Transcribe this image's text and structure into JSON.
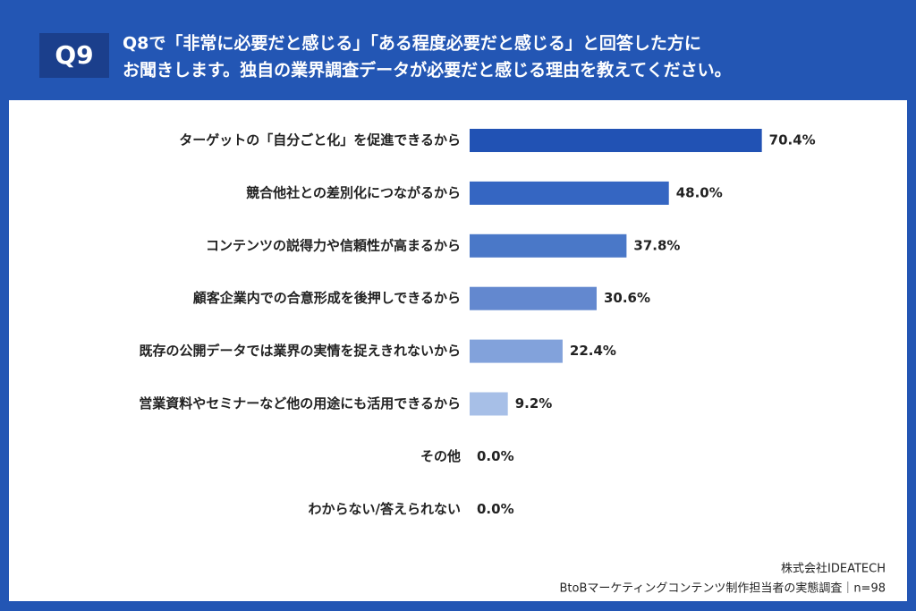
{
  "badge": "Q9",
  "chart_data": {
    "type": "hbar",
    "title": [
      "Q8で「非常に必要だと感じる」「ある程度必要だと感じる」と回答した方に",
      "お聞きします。独自の業界調査データが必要だと感じる理由を教えてください。"
    ],
    "categories": [
      "ターゲットの「自分ごと化」を促進できるから",
      "競合他社との差別化につながるから",
      "コンテンツの説得力や信頼性が高まるから",
      "顧客企業内での合意形成を後押しできるから",
      "既存の公開データでは業界の実情を捉えきれないから",
      "営業資料やセミナーなど他の用途にも活用できるから",
      "その他",
      "わからない/答えられない"
    ],
    "values": [
      70.4,
      48.0,
      37.8,
      30.6,
      22.4,
      9.2,
      0.0,
      0.0
    ],
    "value_labels": [
      "70.4%",
      "48.0%",
      "37.8%",
      "30.6%",
      "22.4%",
      "9.2%",
      "0.0%",
      "0.0%"
    ],
    "colors": [
      "#2152b4",
      "#3566c2",
      "#4a78c8",
      "#6388cf",
      "#82a2db",
      "#a7bfe7",
      "#a7bfe7",
      "#a7bfe7"
    ],
    "xlim": [
      0,
      100
    ]
  },
  "footer": {
    "company": "株式会社IDEATECH",
    "survey": "BtoBマーケティングコンテンツ制作担当者の実態調査｜n=98"
  }
}
